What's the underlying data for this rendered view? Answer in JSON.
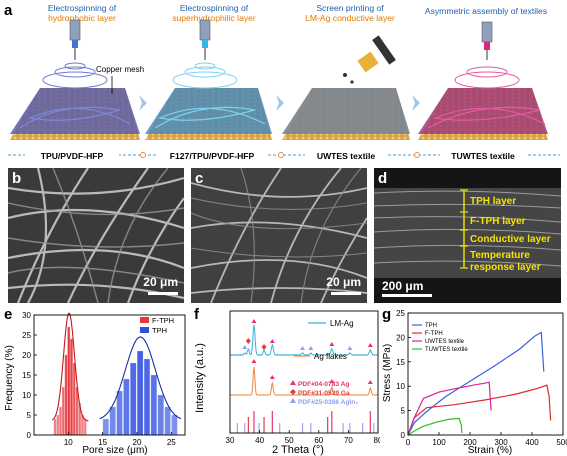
{
  "panel_labels": {
    "a": "a",
    "b": "b",
    "c": "c",
    "d": "d",
    "e": "e",
    "f": "f",
    "g": "g"
  },
  "panel_a": {
    "steps": [
      {
        "line1": "Electrospinning of",
        "line2": "hydrophobic layer",
        "line1_color": "#1f5fae",
        "line2_color": "#e07b00"
      },
      {
        "line1": "Electrospinning of",
        "line2": "superhydrophilic layer",
        "line1_color": "#1f5fae",
        "line2_color": "#e07b00"
      },
      {
        "line1": "Screen printing of",
        "line2": "LM-Ag conductive layer",
        "line1_color": "#1f5fae",
        "line2_color": "#e07b00"
      },
      {
        "line1": "Asymmetric assembly of textiles",
        "line2": "",
        "line1_color": "#1f5fae",
        "line2_color": "#e07b00"
      }
    ],
    "copper_mesh_label": "Copper mesh",
    "stage_names": [
      "TPU/PVDF-HFP",
      "F127/TPU/PVDF-HFP",
      "UWTES textile",
      "TUWTES textile"
    ]
  },
  "panel_b": {
    "scale": "20 μm"
  },
  "panel_c": {
    "scale": "20 μm"
  },
  "panel_d": {
    "scale": "200 μm",
    "layers": [
      "TPH layer",
      "F-TPH layer",
      "Conductive layer",
      "Temperature",
      "response layer"
    ],
    "layer_color": "#f5e400"
  },
  "chart_data": [
    {
      "type": "bar",
      "panel": "e",
      "xlabel": "Pore size (μm)",
      "ylabel": "Frequency (%)",
      "xlim": [
        5,
        27
      ],
      "ylim": [
        0,
        30
      ],
      "xticks": [
        10,
        15,
        20,
        25
      ],
      "yticks": [
        0,
        5,
        10,
        15,
        20,
        25,
        30
      ],
      "legend_position": "top-right",
      "series": [
        {
          "name": "F-TPH",
          "color": "#e8343a",
          "bin_width": 0.42,
          "x": [
            8.1,
            8.5,
            8.9,
            9.3,
            9.7,
            10.1,
            10.5,
            10.9,
            11.3,
            11.7,
            12.1,
            12.5
          ],
          "values": [
            4,
            5,
            7,
            12,
            20,
            27,
            24,
            18,
            12,
            8,
            5,
            4
          ]
        },
        {
          "name": "TPH",
          "color": "#2f4fe0",
          "bin_width": 0.92,
          "x": [
            15.5,
            16.5,
            17.5,
            18.5,
            19.5,
            20.5,
            21.5,
            22.5,
            23.5,
            24.5,
            25.5
          ],
          "values": [
            4,
            7,
            11,
            14,
            18,
            21,
            19,
            15,
            10,
            7,
            5
          ]
        }
      ]
    },
    {
      "type": "line",
      "panel": "f",
      "xlabel": "2 Theta (°)",
      "ylabel": "Intensity (a.u.)",
      "xlim": [
        30,
        80
      ],
      "xticks": [
        30,
        40,
        50,
        60,
        70,
        80
      ],
      "series": [
        {
          "name": "LM-Ag",
          "color": "#3bb0d8"
        },
        {
          "name": "Ag flakes",
          "color": "#f0883a"
        }
      ],
      "reference_legend": [
        {
          "label": "PDF#04-0783 Ag",
          "color": "#e8346e",
          "marker": "triangle"
        },
        {
          "label": "PDF#31-0539 Ga",
          "color": "#e04040",
          "marker": "diamond"
        },
        {
          "label": "PDF#25-0386 AgIn₂",
          "color": "#8fa0f0",
          "marker": "triangle"
        }
      ],
      "reference_lines": [
        {
          "x": 32.5,
          "color": "#9aa6f0"
        },
        {
          "x": 35.0,
          "color": "#9aa6f0"
        },
        {
          "x": 36.2,
          "color": "#e04040"
        },
        {
          "x": 38.1,
          "color": "#e8346e"
        },
        {
          "x": 39.8,
          "color": "#9aa6f0"
        },
        {
          "x": 41.5,
          "color": "#e04040"
        },
        {
          "x": 44.3,
          "color": "#e8346e"
        },
        {
          "x": 46.8,
          "color": "#9aa6f0"
        },
        {
          "x": 54.5,
          "color": "#9aa6f0"
        },
        {
          "x": 57.3,
          "color": "#9aa6f0"
        },
        {
          "x": 63.0,
          "color": "#e04040"
        },
        {
          "x": 64.4,
          "color": "#e8346e"
        },
        {
          "x": 68.2,
          "color": "#9aa6f0"
        },
        {
          "x": 70.5,
          "color": "#9aa6f0"
        },
        {
          "x": 74.8,
          "color": "#9aa6f0"
        },
        {
          "x": 77.4,
          "color": "#e8346e"
        },
        {
          "x": 78.6,
          "color": "#9aa6f0"
        }
      ]
    },
    {
      "type": "line",
      "panel": "g",
      "xlabel": "Strain (%)",
      "ylabel": "Stress (MPa)",
      "xlim": [
        0,
        500
      ],
      "ylim": [
        0,
        25
      ],
      "xticks": [
        0,
        100,
        200,
        300,
        400,
        500
      ],
      "yticks": [
        0,
        5,
        10,
        15,
        20,
        25
      ],
      "legend_position": "top-left",
      "series": [
        {
          "name": "TPH",
          "color": "#3a5fe0",
          "x": [
            0,
            20,
            60,
            120,
            200,
            280,
            360,
            410,
            430,
            438
          ],
          "y": [
            0,
            2.5,
            4.8,
            7.8,
            11,
            14.2,
            17.6,
            20.3,
            21,
            13
          ]
        },
        {
          "name": "F-TPH",
          "color": "#e02a2a",
          "x": [
            0,
            20,
            60,
            150,
            250,
            350,
            420,
            448,
            455,
            460
          ],
          "y": [
            0,
            3.5,
            5.6,
            6.2,
            7.2,
            8.4,
            9.6,
            10.2,
            8,
            3
          ]
        },
        {
          "name": "UWTES textile",
          "color": "#d8249a",
          "x": [
            0,
            20,
            50,
            100,
            160,
            210,
            245,
            262,
            268
          ],
          "y": [
            0,
            3.5,
            7.5,
            8.8,
            9.6,
            10.2,
            10.6,
            10.8,
            5
          ]
        },
        {
          "name": "TUWTES textile",
          "color": "#28c028",
          "x": [
            0,
            20,
            50,
            90,
            130,
            165,
            172,
            174
          ],
          "y": [
            0,
            0.8,
            1.8,
            2.6,
            3.2,
            3.4,
            2,
            0.4
          ]
        }
      ]
    }
  ]
}
